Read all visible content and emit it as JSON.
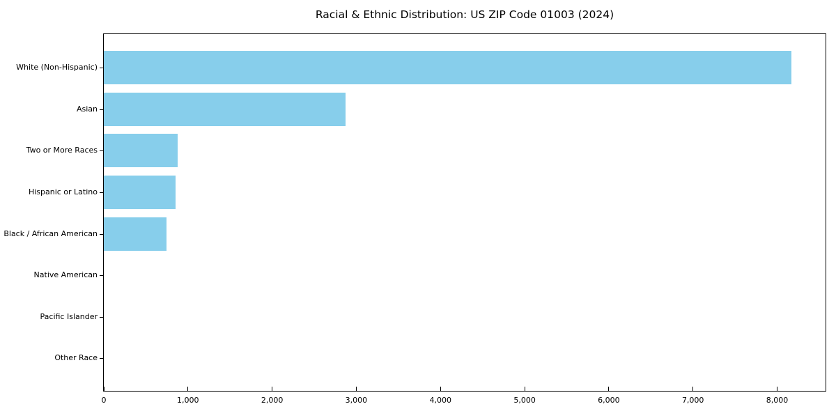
{
  "title": "Racial & Ethnic Distribution: US ZIP Code 01003 (2024)",
  "colors": {
    "bar": "#87CEEB",
    "axis": "#000000",
    "text": "#000000",
    "background": "#FFFFFF"
  },
  "chart_data": {
    "type": "bar",
    "orientation": "horizontal",
    "title": "Racial & Ethnic Distribution: US ZIP Code 01003 (2024)",
    "categories": [
      "White (Non-Hispanic)",
      "Asian",
      "Two or More Races",
      "Hispanic or Latino",
      "Black / African American",
      "Native American",
      "Pacific Islander",
      "Other Race"
    ],
    "values": [
      8170,
      2870,
      875,
      850,
      745,
      0,
      0,
      0
    ],
    "xlabel": "",
    "ylabel": "",
    "xlim": [
      0,
      8575
    ],
    "xticks": [
      0,
      1000,
      2000,
      3000,
      4000,
      5000,
      6000,
      7000,
      8000
    ],
    "xtick_labels": [
      "0",
      "1,000",
      "2,000",
      "3,000",
      "4,000",
      "5,000",
      "6,000",
      "7,000",
      "8,000"
    ],
    "grid": false,
    "legend": null,
    "bar_color": "#87CEEB"
  }
}
